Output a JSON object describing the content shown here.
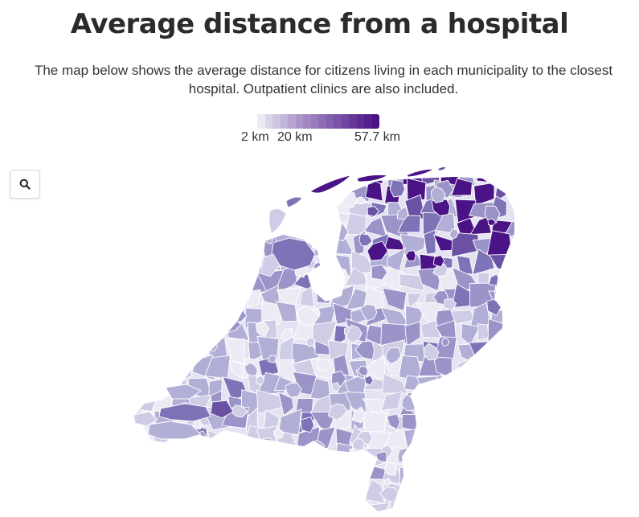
{
  "header": {
    "title": "Average distance from a hospital",
    "subtitle": "The map below shows the average distance for citizens living in each municipality to the closest hospital. Outpatient clinics are also included."
  },
  "legend": {
    "min_label": "2 km",
    "mid_label": "20 km",
    "max_label": "57.7 km",
    "min_value_km": 2,
    "mid_value_km": 20,
    "max_value_km": 57.7,
    "color_low": "#ecebf5",
    "color_high": "#4a1486"
  },
  "controls": {
    "zoom_icon": "search-icon"
  },
  "map": {
    "region": "Netherlands",
    "unit_level": "municipality",
    "colors": {
      "lightest": "#ecebf5",
      "light": "#cfcde6",
      "mid": "#b2afd6",
      "medium": "#9a94c8",
      "dark": "#7e73b6",
      "darker": "#6a51a3",
      "darkest": "#4a1486",
      "border": "#ffffff"
    }
  }
}
